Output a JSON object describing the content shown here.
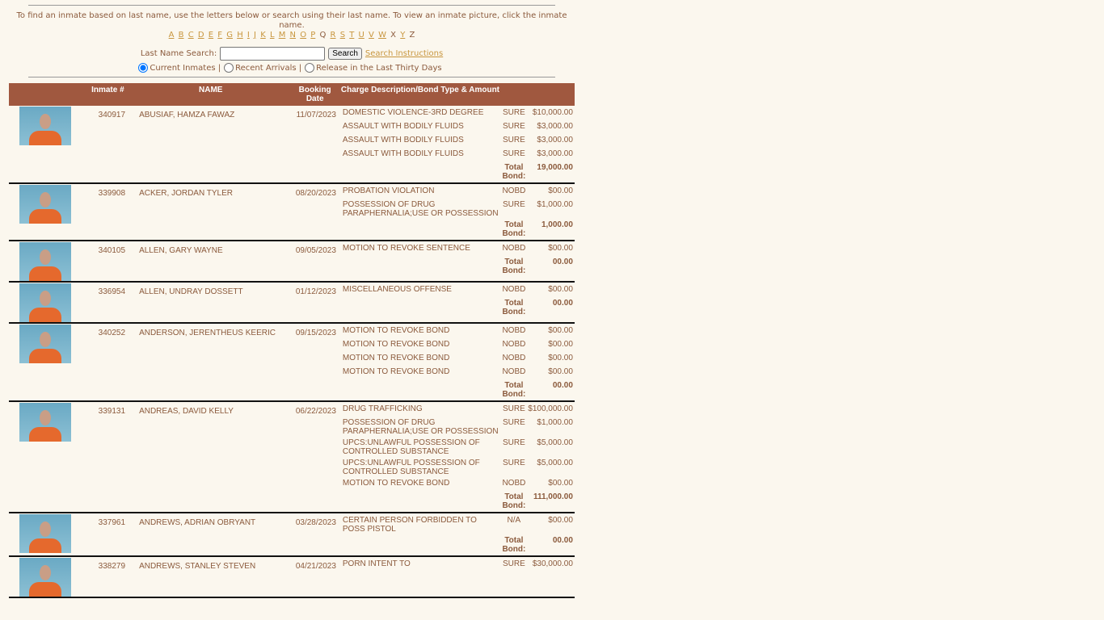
{
  "intro": "To find an inmate based on last name, use the letters below or search using their last name.  To view an inmate picture, click the inmate name.",
  "letters": [
    {
      "l": "A",
      "link": true
    },
    {
      "l": "B",
      "link": true
    },
    {
      "l": "C",
      "link": true
    },
    {
      "l": "D",
      "link": true
    },
    {
      "l": "E",
      "link": true
    },
    {
      "l": "F",
      "link": true
    },
    {
      "l": "G",
      "link": true
    },
    {
      "l": "H",
      "link": true
    },
    {
      "l": "I",
      "link": true
    },
    {
      "l": "J",
      "link": true
    },
    {
      "l": "K",
      "link": true
    },
    {
      "l": "L",
      "link": true
    },
    {
      "l": "M",
      "link": true
    },
    {
      "l": "N",
      "link": true
    },
    {
      "l": "O",
      "link": true
    },
    {
      "l": "P",
      "link": true
    },
    {
      "l": "Q",
      "link": false
    },
    {
      "l": "R",
      "link": true
    },
    {
      "l": "S",
      "link": true
    },
    {
      "l": "T",
      "link": true
    },
    {
      "l": "U",
      "link": true
    },
    {
      "l": "V",
      "link": true
    },
    {
      "l": "W",
      "link": true
    },
    {
      "l": "X",
      "link": false
    },
    {
      "l": "Y",
      "link": true
    },
    {
      "l": "Z",
      "link": false
    }
  ],
  "search": {
    "label": "Last Name Search:",
    "value": "",
    "button": "Search",
    "instructions": "Search Instructions"
  },
  "filters": [
    {
      "label": "Current Inmates |",
      "checked": true
    },
    {
      "label": "Recent Arrivals |",
      "checked": false
    },
    {
      "label": "Release in the Last Thirty Days",
      "checked": false
    }
  ],
  "table": {
    "headers": [
      "",
      "Inmate #",
      "NAME",
      "Booking Date",
      "Charge Description/Bond Type & Amount"
    ],
    "total_label": "Total Bond:",
    "rows": [
      {
        "num": "340917",
        "name": "ABUSIAF, HAMZA FAWAZ",
        "date": "11/07/2023",
        "charges": [
          [
            "DOMESTIC VIOLENCE-3RD DEGREE",
            "SURE",
            "$10,000.00"
          ],
          [
            "ASSAULT WITH BODILY FLUIDS",
            "SURE",
            "$3,000.00"
          ],
          [
            "ASSAULT WITH BODILY FLUIDS",
            "SURE",
            "$3,000.00"
          ],
          [
            "ASSAULT WITH BODILY FLUIDS",
            "SURE",
            "$3,000.00"
          ]
        ],
        "total": "19,000.00"
      },
      {
        "num": "339908",
        "name": "ACKER, JORDAN TYLER",
        "date": "08/20/2023",
        "charges": [
          [
            "PROBATION VIOLATION",
            "NOBD",
            "$00.00"
          ],
          [
            "POSSESSION OF DRUG PARAPHERNALIA;USE OR POSSESSION",
            "SURE",
            "$1,000.00"
          ]
        ],
        "total": "1,000.00"
      },
      {
        "num": "340105",
        "name": "ALLEN, GARY WAYNE",
        "date": "09/05/2023",
        "charges": [
          [
            "MOTION TO REVOKE SENTENCE",
            "NOBD",
            "$00.00"
          ]
        ],
        "total": "00.00"
      },
      {
        "num": "336954",
        "name": "ALLEN, UNDRAY DOSSETT",
        "date": "01/12/2023",
        "charges": [
          [
            "MISCELLANEOUS OFFENSE",
            "NOBD",
            "$00.00"
          ]
        ],
        "total": "00.00"
      },
      {
        "num": "340252",
        "name": "ANDERSON, JERENTHEUS KEERIC",
        "date": "09/15/2023",
        "charges": [
          [
            "MOTION TO REVOKE BOND",
            "NOBD",
            "$00.00"
          ],
          [
            "MOTION TO REVOKE BOND",
            "NOBD",
            "$00.00"
          ],
          [
            "MOTION TO REVOKE BOND",
            "NOBD",
            "$00.00"
          ],
          [
            "MOTION TO REVOKE BOND",
            "NOBD",
            "$00.00"
          ]
        ],
        "total": "00.00"
      },
      {
        "num": "339131",
        "name": "ANDREAS, DAVID KELLY",
        "date": "06/22/2023",
        "charges": [
          [
            "DRUG TRAFFICKING",
            "SURE",
            "$100,000.00"
          ],
          [
            "POSSESSION OF DRUG PARAPHERNALIA;USE OR POSSESSION",
            "SURE",
            "$1,000.00"
          ],
          [
            "UPCS:UNLAWFUL POSSESSION OF CONTROLLED SUBSTANCE",
            "SURE",
            "$5,000.00"
          ],
          [
            "UPCS:UNLAWFUL POSSESSION OF CONTROLLED SUBSTANCE",
            "SURE",
            "$5,000.00"
          ],
          [
            "MOTION TO REVOKE BOND",
            "NOBD",
            "$00.00"
          ]
        ],
        "total": "111,000.00"
      },
      {
        "num": "337961",
        "name": "ANDREWS, ADRIAN OBRYANT",
        "date": "03/28/2023",
        "charges": [
          [
            "CERTAIN PERSON FORBIDDEN TO POSS PISTOL",
            "N/A",
            "$00.00"
          ]
        ],
        "total": "00.00"
      },
      {
        "num": "338279",
        "name": "ANDREWS, STANLEY STEVEN",
        "date": "04/21/2023",
        "charges": [
          [
            "PORN INTENT TO",
            "SURE",
            "$30,000.00"
          ]
        ],
        "total": ""
      }
    ]
  },
  "colors": {
    "header_bg": "#a0583f",
    "text": "#8b5a3c",
    "link": "#c8963e",
    "background": "#fbf7ee"
  }
}
